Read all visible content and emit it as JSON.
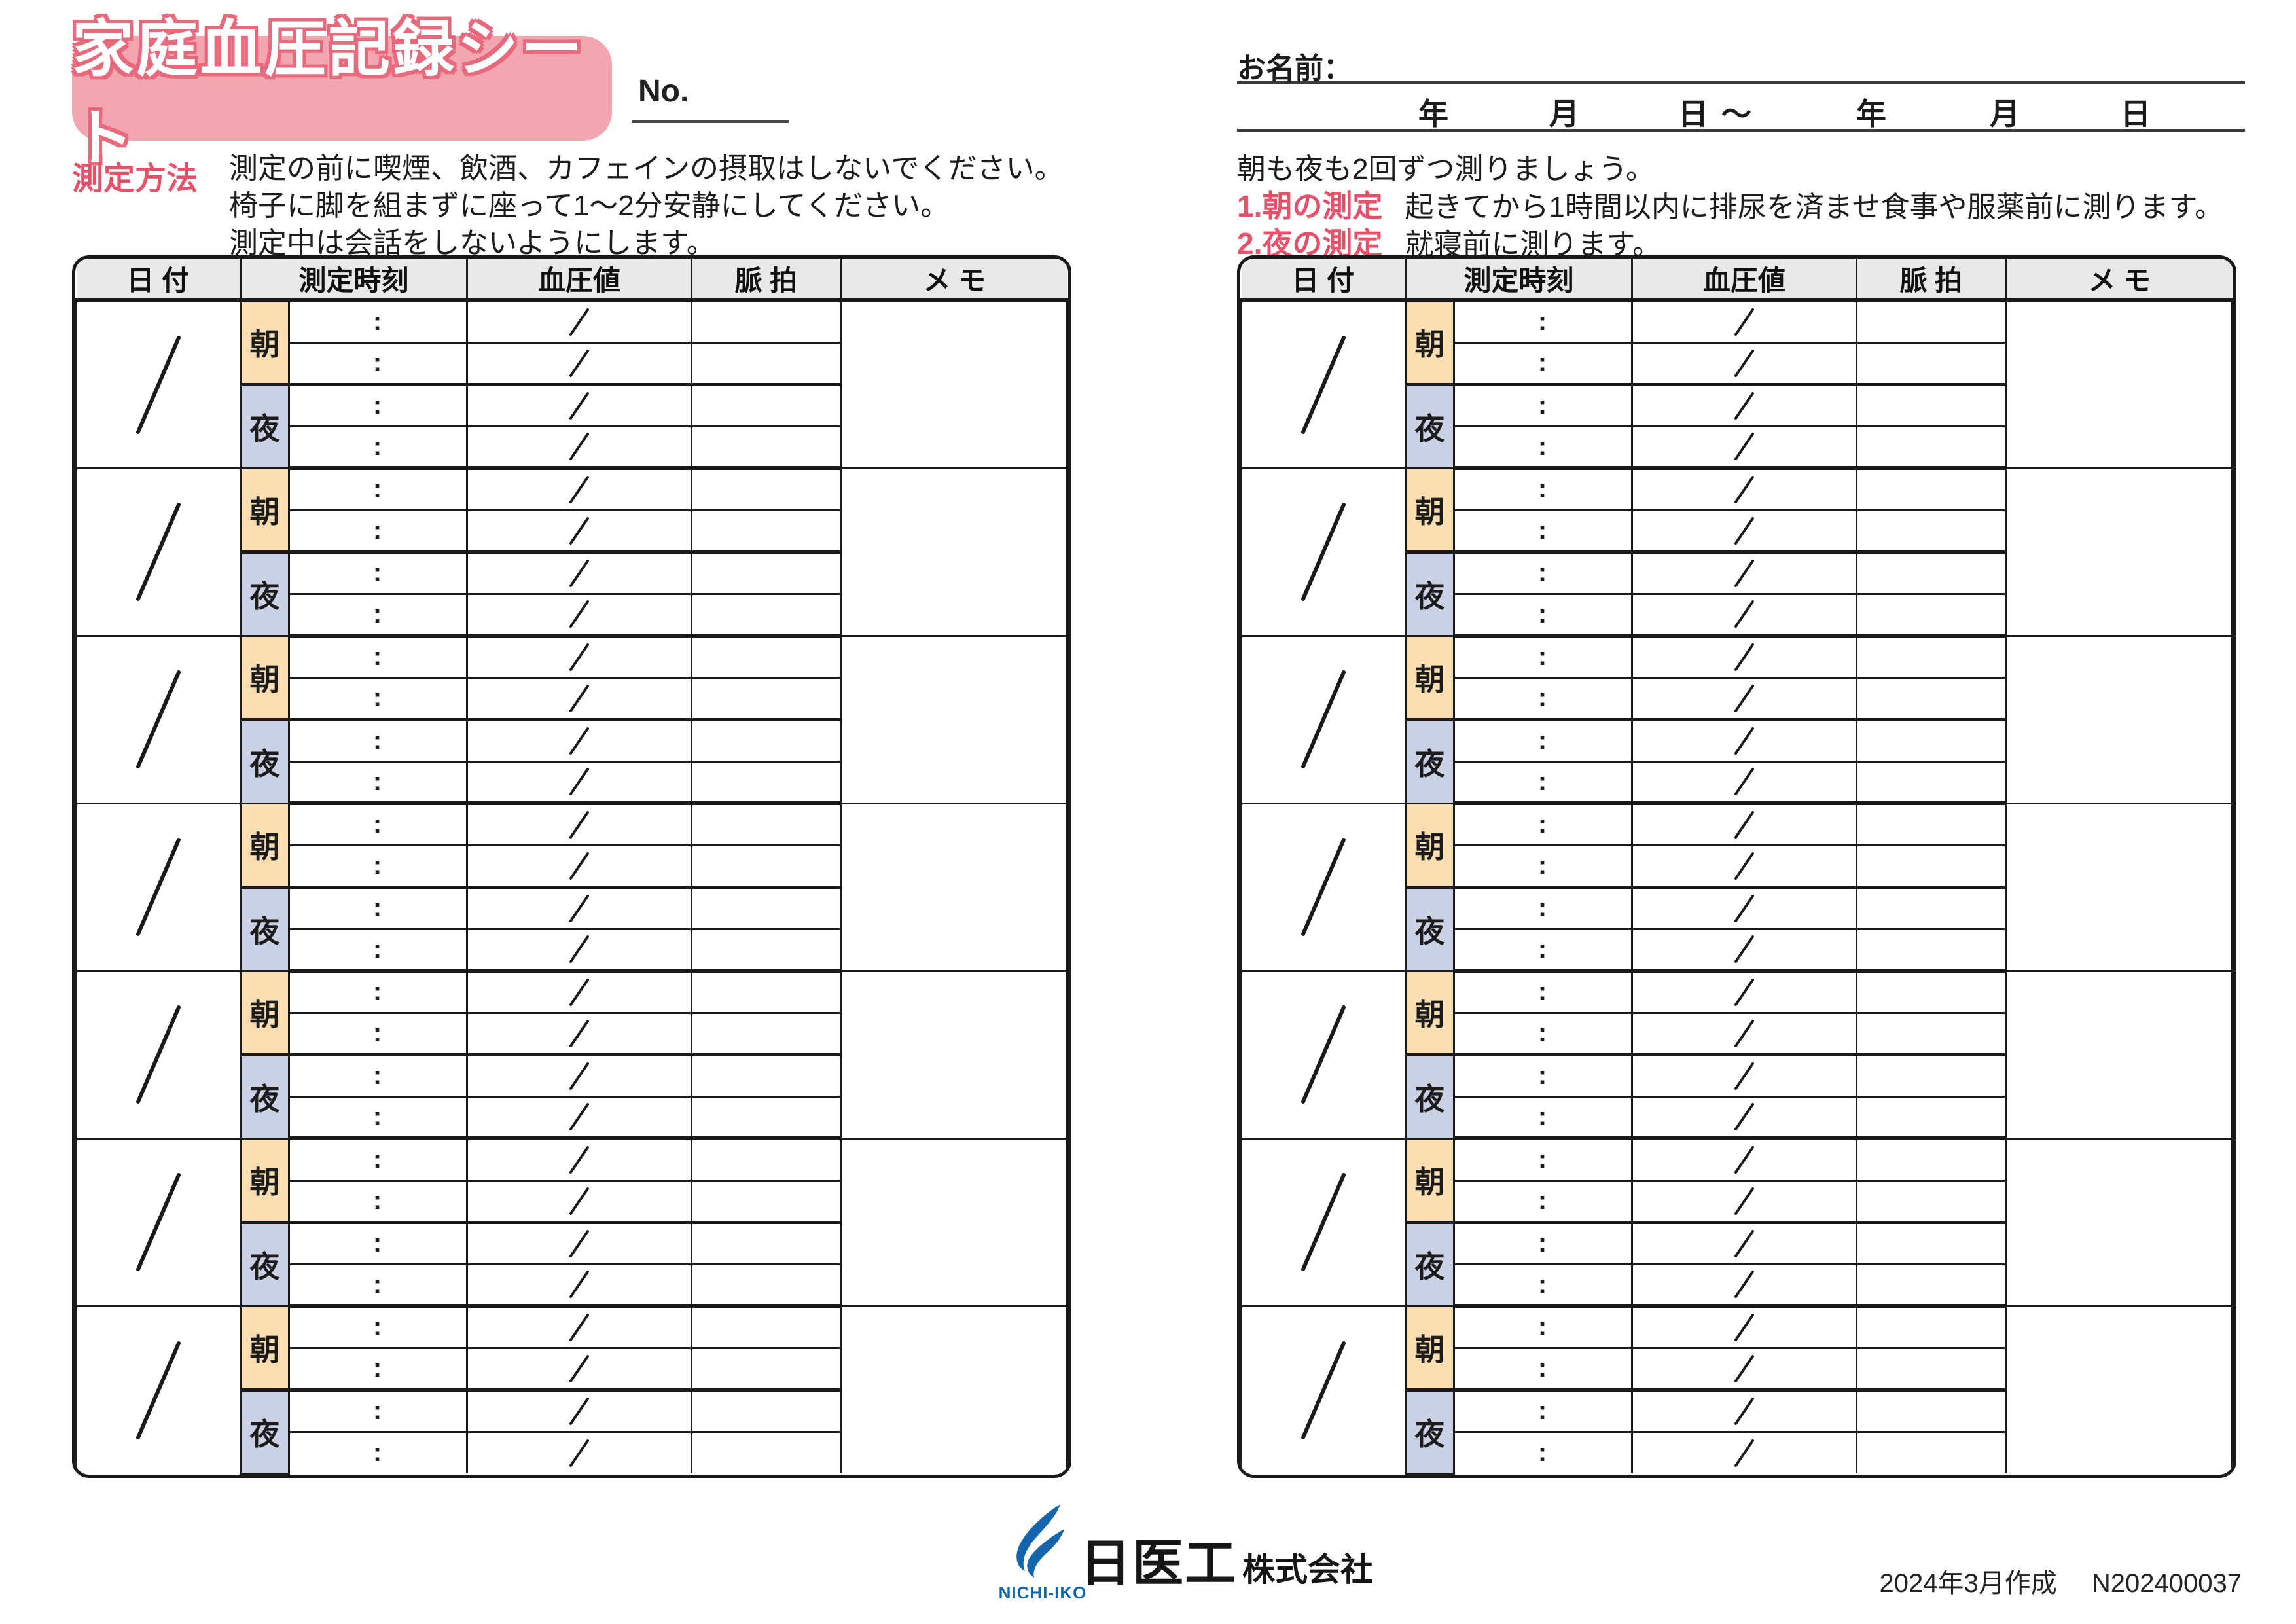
{
  "header": {
    "title": "家庭血圧記録シート",
    "no_label": "No."
  },
  "method": {
    "heading": "測定方法",
    "lines": [
      "測定の前に喫煙、飲酒、カフェインの摂取はしないでください。",
      "椅子に脚を組まずに座って1～2分安静にしてください。",
      "測定中は会話をしないようにします。"
    ]
  },
  "name_section": {
    "label": "お名前：",
    "date_tokens": [
      "年",
      "月",
      "日",
      "～",
      "年",
      "月",
      "日"
    ]
  },
  "notes": {
    "intro": "朝も夜も2回ずつ測りましょう。",
    "items": [
      {
        "label": "1.朝の測定",
        "text": "起きてから1時間以内に排尿を済ませ食事や服薬前に測ります。"
      },
      {
        "label": "2.夜の測定",
        "text": "就寝前に測ります。"
      }
    ]
  },
  "table": {
    "headers": [
      "日 付",
      "測定時刻",
      "血圧値",
      "脈 拍",
      "メ モ"
    ],
    "morning_label": "朝",
    "night_label": "夜",
    "time_colon": ":",
    "groups_per_table": 7,
    "table_count": 2
  },
  "footer": {
    "logo_text": "NICHI-IKO",
    "company": "日医工",
    "company_suffix": "株式会社",
    "created": "2024年3月作成",
    "code": "N202400037"
  },
  "colors": {
    "badge_bg": "#f2a6af",
    "badge_outline": "#e8687c",
    "accent_red": "#e75069",
    "morning_bg": "#fbdfb2",
    "night_bg": "#cbd1e4",
    "header_bg": "#e9e9e9",
    "table_line": "#1a1a1a",
    "logo_blue": "#1565ac"
  }
}
